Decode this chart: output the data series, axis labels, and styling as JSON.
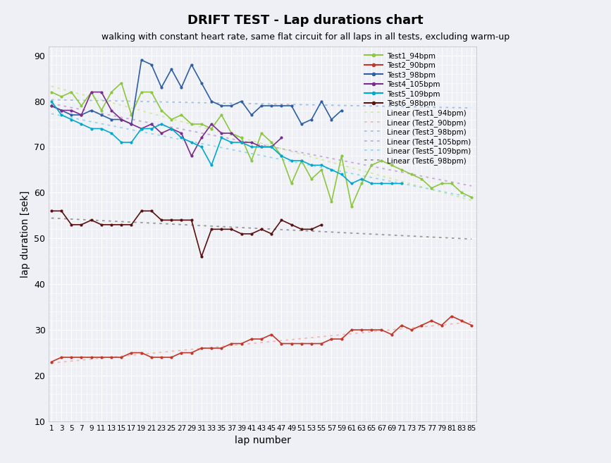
{
  "title": "DRIFT TEST - Lap durations chart",
  "subtitle": "walking with constant heart rate, same flat circuit for all laps in all tests, excluding warm-up",
  "xlabel": "lap number",
  "ylabel": "lap duration [sek]",
  "ylim": [
    10,
    92
  ],
  "yticks": [
    10,
    20,
    30,
    40,
    50,
    60,
    70,
    80,
    90
  ],
  "series": {
    "Test1_94bpm": {
      "color": "#8dc63f",
      "laps": [
        1,
        3,
        5,
        7,
        9,
        11,
        13,
        15,
        17,
        19,
        21,
        23,
        25,
        27,
        29,
        31,
        33,
        35,
        37,
        39,
        41,
        43,
        45,
        47,
        49,
        51,
        53,
        55,
        57,
        59,
        61,
        63,
        65,
        67,
        69,
        71,
        73,
        75,
        77,
        79,
        81,
        83,
        85
      ],
      "values": [
        82,
        81,
        82,
        79,
        82,
        78,
        82,
        84,
        77,
        82,
        82,
        78,
        76,
        77,
        75,
        75,
        74,
        77,
        73,
        72,
        67,
        73,
        71,
        68,
        62,
        67,
        63,
        65,
        58,
        68,
        57,
        62,
        66,
        67,
        66,
        65,
        64,
        63,
        61,
        62,
        62,
        60,
        59
      ]
    },
    "Test2_90bpm": {
      "color": "#c0392b",
      "laps": [
        1,
        3,
        5,
        7,
        9,
        11,
        13,
        15,
        17,
        19,
        21,
        23,
        25,
        27,
        29,
        31,
        33,
        35,
        37,
        39,
        41,
        43,
        45,
        47,
        49,
        51,
        53,
        55,
        57,
        59,
        61,
        63,
        65,
        67,
        69,
        71,
        73,
        75,
        77,
        79,
        81,
        83,
        85
      ],
      "values": [
        23,
        24,
        24,
        24,
        24,
        24,
        24,
        24,
        25,
        25,
        24,
        24,
        24,
        25,
        25,
        26,
        26,
        26,
        27,
        27,
        28,
        28,
        29,
        27,
        27,
        27,
        27,
        27,
        28,
        28,
        30,
        30,
        30,
        30,
        29,
        31,
        30,
        31,
        32,
        31,
        33,
        32,
        31
      ]
    },
    "Test3_98bpm": {
      "color": "#2e5fa3",
      "laps": [
        1,
        3,
        5,
        7,
        9,
        11,
        13,
        15,
        17,
        19,
        21,
        23,
        25,
        27,
        29,
        31,
        33,
        35,
        37,
        39,
        41,
        43,
        45,
        47,
        49,
        51,
        53,
        55,
        57,
        59
      ],
      "values": [
        79,
        78,
        77,
        77,
        78,
        77,
        76,
        76,
        75,
        89,
        88,
        83,
        87,
        83,
        88,
        84,
        80,
        79,
        79,
        80,
        77,
        79,
        79,
        79,
        79,
        75,
        76,
        80,
        76,
        78
      ]
    },
    "Test4_105bpm": {
      "color": "#7b2d8b",
      "laps": [
        1,
        3,
        5,
        7,
        9,
        11,
        13,
        15,
        17,
        19,
        21,
        23,
        25,
        27,
        29,
        31,
        33,
        35,
        37,
        39,
        41,
        43,
        45,
        47
      ],
      "values": [
        79,
        78,
        78,
        77,
        82,
        82,
        78,
        76,
        75,
        74,
        75,
        73,
        74,
        73,
        68,
        72,
        75,
        73,
        73,
        71,
        71,
        70,
        70,
        72
      ]
    },
    "Test5_109bpm": {
      "color": "#00aacc",
      "laps": [
        1,
        3,
        5,
        7,
        9,
        11,
        13,
        15,
        17,
        19,
        21,
        23,
        25,
        27,
        29,
        31,
        33,
        35,
        37,
        39,
        41,
        43,
        45,
        47,
        49,
        51,
        53,
        55,
        57,
        59,
        61,
        63,
        65,
        67,
        69,
        71
      ],
      "values": [
        80,
        77,
        76,
        75,
        74,
        74,
        73,
        71,
        71,
        74,
        74,
        75,
        74,
        72,
        71,
        70,
        66,
        72,
        71,
        71,
        70,
        70,
        70,
        68,
        67,
        67,
        66,
        66,
        65,
        64,
        62,
        63,
        62,
        62,
        62,
        62
      ]
    },
    "Test6_98bpm": {
      "color": "#5c1010",
      "laps": [
        1,
        3,
        5,
        7,
        9,
        11,
        13,
        15,
        17,
        19,
        21,
        23,
        25,
        27,
        29,
        31,
        33,
        35,
        37,
        39,
        41,
        43,
        45,
        47,
        49,
        51,
        53,
        55
      ],
      "values": [
        56,
        56,
        53,
        53,
        54,
        53,
        53,
        53,
        53,
        56,
        56,
        54,
        54,
        54,
        54,
        46,
        52,
        52,
        52,
        51,
        51,
        52,
        51,
        54,
        53,
        52,
        52,
        53
      ]
    }
  },
  "trendline_colors": {
    "Test1_94bpm": "#d4e8a0",
    "Test2_90bpm": "#f5b8b0",
    "Test3_98bpm": "#a0c0e8",
    "Test4_105bpm": "#c8a8d8",
    "Test5_109bpm": "#90d8f0",
    "Test6_98bpm": "#999999"
  },
  "trendline_labels": {
    "Test1_94bpm": "Linear (Test1_94bpm)",
    "Test2_90bpm": "Linear (Test2_90bpm)",
    "Test3_98bpm": "Linear (Test3_98bpm)",
    "Test4_105bpm": "Linear (Test4_105bpm)",
    "Test5_109bpm": "Linear (Test5_109bpm)",
    "Test6_98bpm": "Linear (Test6_98bpm)"
  },
  "background_color": "#eef0f5",
  "grid_color": "#ffffff"
}
